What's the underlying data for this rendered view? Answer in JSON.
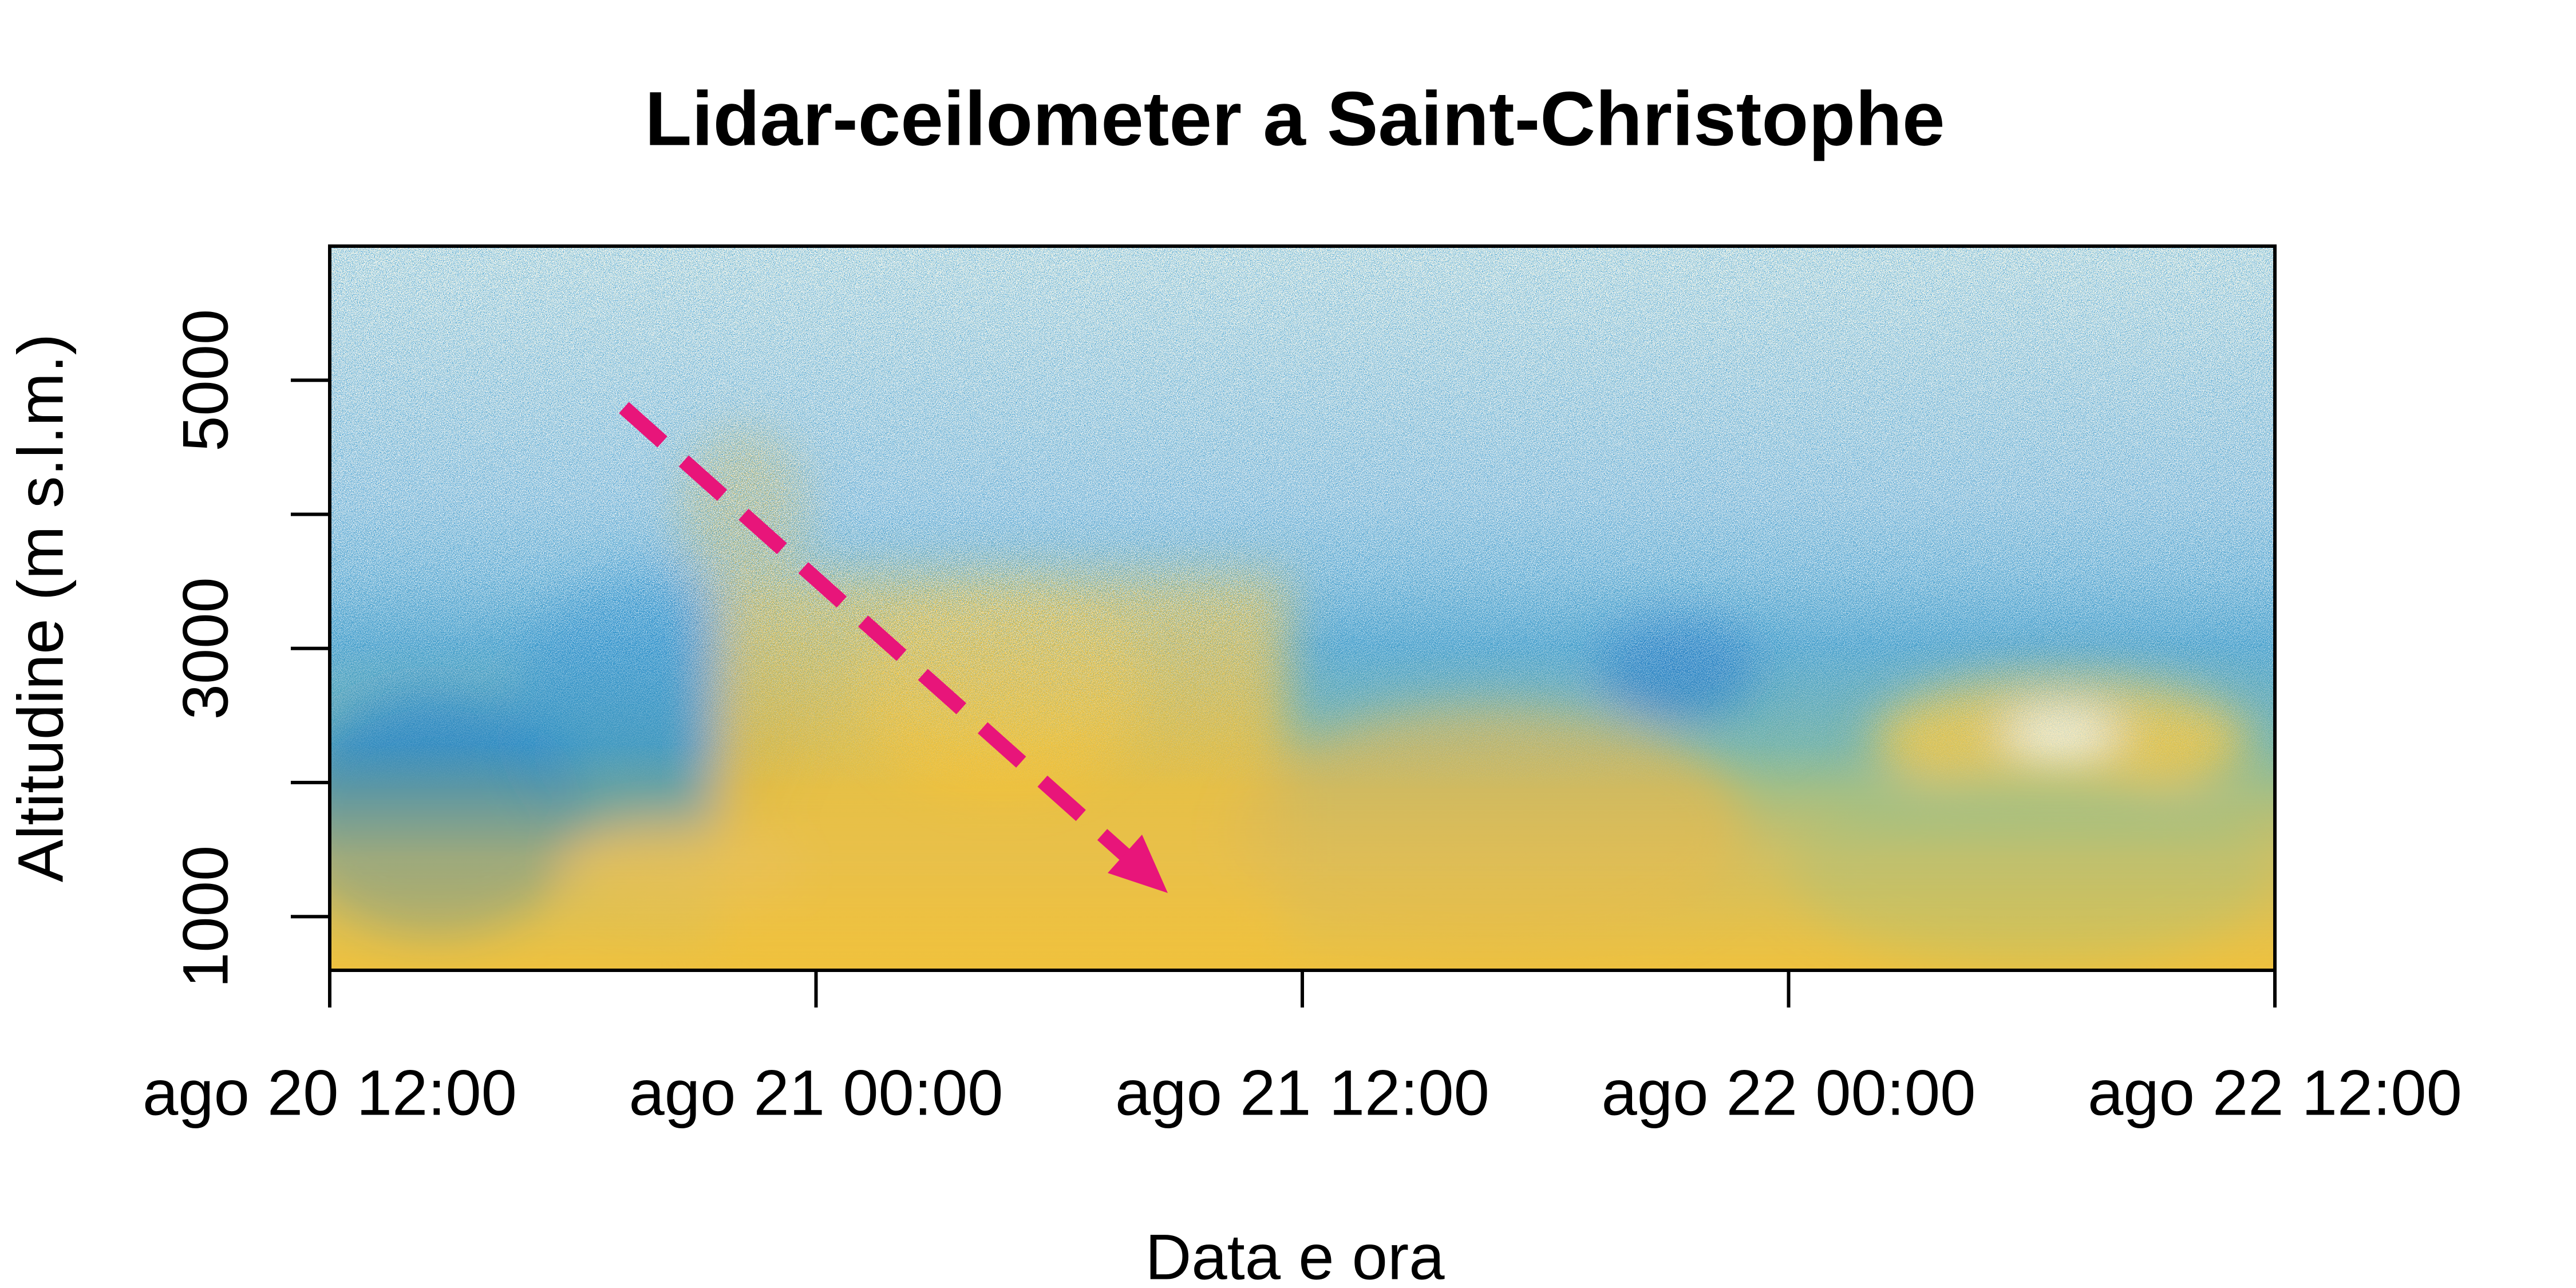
{
  "chart_data": {
    "type": "raster",
    "title": "Lidar-ceilometer a Saint-Christophe",
    "xlabel": "Data e ora",
    "ylabel": "Altitudine (m s.l.m.)",
    "xlim": [
      "ago 20 12:00",
      "ago 22 12:00"
    ],
    "xticks": [
      "ago 20 12:00",
      "ago 21 00:00",
      "ago 21 12:00",
      "ago 22 00:00",
      "ago 22 12:00"
    ],
    "ylim": [
      600,
      6000
    ],
    "yticks": [
      1000,
      3000,
      5000
    ],
    "yminor_ticks": [
      2000,
      4000
    ],
    "annotation_color": "#e8157a"
  }
}
